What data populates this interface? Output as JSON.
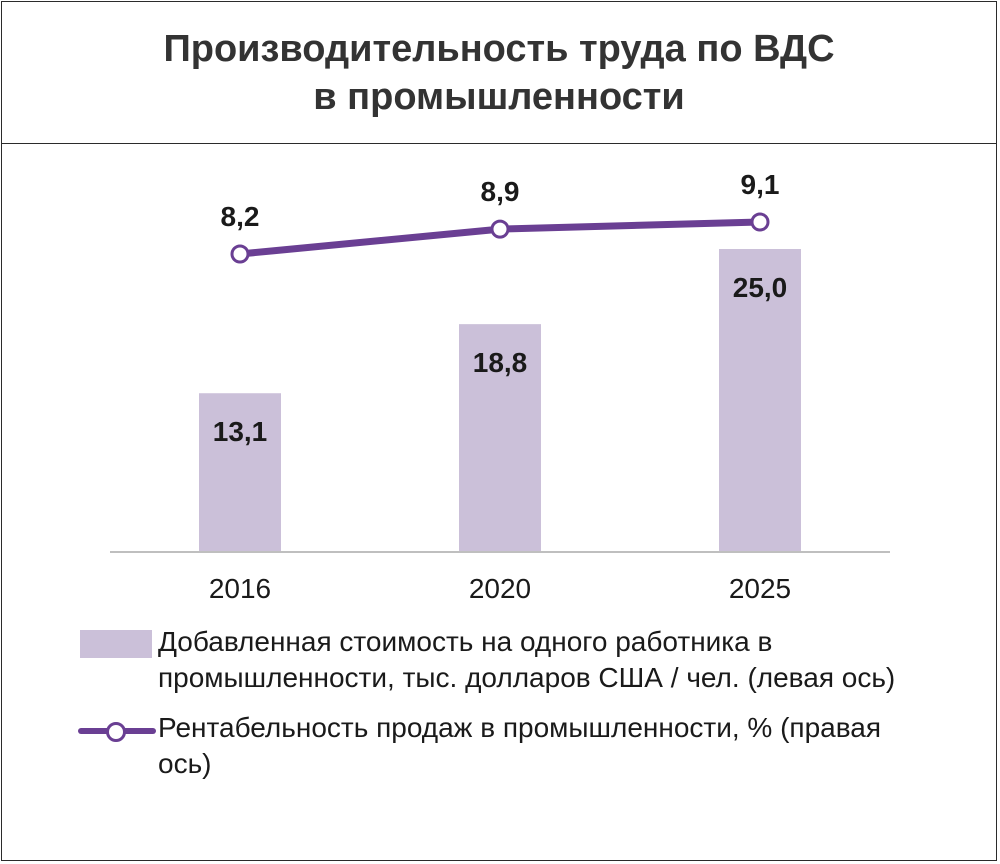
{
  "title": {
    "lines": [
      "Производительность труда по ВДС",
      "в промышленности"
    ]
  },
  "colors": {
    "bar": "#cbc0d9",
    "line": "#6a3f93",
    "axis": "#bfbfbf",
    "text": "#1a1a1a"
  },
  "chart_data": {
    "type": "bar",
    "categories": [
      "2016",
      "2020",
      "2025"
    ],
    "series": [
      {
        "name": "Добавленная стоимость на одного работника в промышленности, тыс. долларов  США / чел. (левая ось)",
        "type": "bar",
        "axis": "left",
        "values": [
          13.1,
          18.8,
          25.0
        ],
        "labels": [
          "13,1",
          "18,8",
          "25,0"
        ]
      },
      {
        "name": "Рентабельность продаж в промышленности, % (правая ось)",
        "type": "line",
        "axis": "right",
        "values": [
          8.2,
          8.9,
          9.1
        ],
        "labels": [
          "8,2",
          "8,9",
          "9,1"
        ]
      }
    ],
    "legend_position": "bottom",
    "grid": false
  },
  "legend": {
    "bar_label_line1": "Добавленная стоимость на одного работника в",
    "bar_label_line2": "промышленности, тыс. долларов  США / чел. (левая ось)",
    "line_label_line1": "Рентабельность продаж в промышленности, % (правая",
    "line_label_line2": "ось)"
  }
}
